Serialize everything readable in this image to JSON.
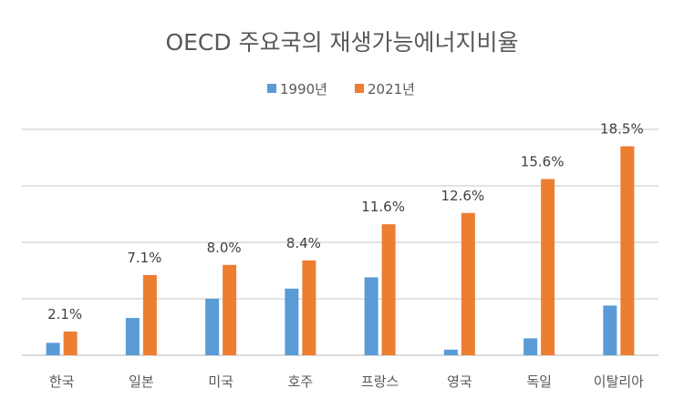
{
  "chart_data": {
    "type": "bar",
    "title": "OECD 주요국의 재생가능에너지비율",
    "categories": [
      "한국",
      "일본",
      "미국",
      "호주",
      "프랑스",
      "영국",
      "독일",
      "이탈리아"
    ],
    "series": [
      {
        "name": "1990년",
        "color": "#5b9bd5",
        "values": [
          1.1,
          3.3,
          5.0,
          5.9,
          6.9,
          0.5,
          1.5,
          4.4
        ],
        "labels": []
      },
      {
        "name": "2021년",
        "color": "#ed7d31",
        "values": [
          2.1,
          7.1,
          8.0,
          8.4,
          11.6,
          12.6,
          15.6,
          18.5
        ],
        "labels": [
          "2.1%",
          "7.1%",
          "8.0%",
          "8.4%",
          "11.6%",
          "12.6%",
          "15.6%",
          "18.5%"
        ]
      }
    ],
    "ylim": [
      0,
      20
    ],
    "gridlines": [
      0,
      5,
      10,
      15,
      20
    ],
    "grid": true,
    "legend": "top",
    "xlabel": "",
    "ylabel": ""
  }
}
